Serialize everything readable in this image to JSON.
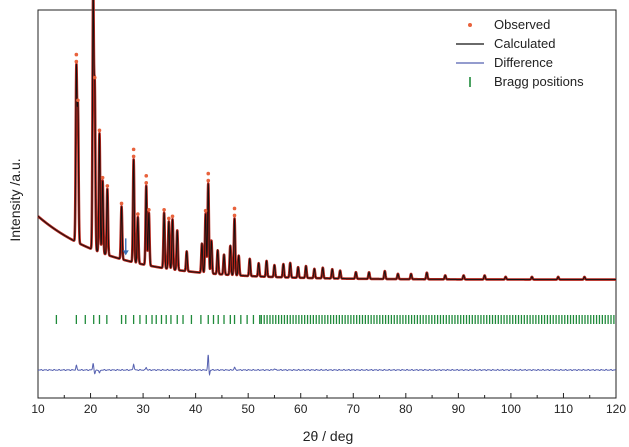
{
  "chart_data": {
    "type": "line",
    "xlabel": "2θ / deg",
    "ylabel": "Intensity /a.u.",
    "xlim": [
      10,
      120
    ],
    "xticks": [
      10,
      20,
      30,
      40,
      50,
      60,
      70,
      80,
      90,
      100,
      110,
      120
    ],
    "grid": false,
    "legend_position": "top-right",
    "background_params": {
      "level": 0.2,
      "amplitude": 0.48,
      "decay": 14
    },
    "peaks": [
      {
        "x": 17.3,
        "h": 1.3
      },
      {
        "x": 17.6,
        "h": 1.0
      },
      {
        "x": 20.5,
        "h": 1.95
      },
      {
        "x": 20.8,
        "h": 1.2
      },
      {
        "x": 21.7,
        "h": 0.9
      },
      {
        "x": 22.3,
        "h": 0.55
      },
      {
        "x": 23.2,
        "h": 0.5
      },
      {
        "x": 25.9,
        "h": 0.4
      },
      {
        "x": 28.2,
        "h": 0.78
      },
      {
        "x": 29.0,
        "h": 0.35
      },
      {
        "x": 30.6,
        "h": 0.6
      },
      {
        "x": 31.1,
        "h": 0.4
      },
      {
        "x": 34.0,
        "h": 0.42
      },
      {
        "x": 34.9,
        "h": 0.36
      },
      {
        "x": 35.6,
        "h": 0.38
      },
      {
        "x": 36.5,
        "h": 0.3
      },
      {
        "x": 38.3,
        "h": 0.15
      },
      {
        "x": 41.2,
        "h": 0.22
      },
      {
        "x": 41.9,
        "h": 0.45
      },
      {
        "x": 42.4,
        "h": 0.68
      },
      {
        "x": 43.0,
        "h": 0.25
      },
      {
        "x": 44.2,
        "h": 0.18
      },
      {
        "x": 45.4,
        "h": 0.15
      },
      {
        "x": 46.6,
        "h": 0.22
      },
      {
        "x": 47.4,
        "h": 0.43
      },
      {
        "x": 48.2,
        "h": 0.15
      },
      {
        "x": 50.3,
        "h": 0.13
      },
      {
        "x": 52.0,
        "h": 0.1
      },
      {
        "x": 53.5,
        "h": 0.12
      },
      {
        "x": 55.0,
        "h": 0.09
      },
      {
        "x": 56.7,
        "h": 0.1
      },
      {
        "x": 58.0,
        "h": 0.11
      },
      {
        "x": 59.5,
        "h": 0.08
      },
      {
        "x": 61.0,
        "h": 0.09
      },
      {
        "x": 62.6,
        "h": 0.07
      },
      {
        "x": 64.2,
        "h": 0.08
      },
      {
        "x": 66.0,
        "h": 0.07
      },
      {
        "x": 67.5,
        "h": 0.06
      },
      {
        "x": 70.5,
        "h": 0.05
      },
      {
        "x": 73.0,
        "h": 0.05
      },
      {
        "x": 76.0,
        "h": 0.06
      },
      {
        "x": 78.5,
        "h": 0.04
      },
      {
        "x": 81.0,
        "h": 0.04
      },
      {
        "x": 84.0,
        "h": 0.05
      },
      {
        "x": 87.5,
        "h": 0.03
      },
      {
        "x": 91.0,
        "h": 0.03
      },
      {
        "x": 95.0,
        "h": 0.03
      },
      {
        "x": 99.0,
        "h": 0.02
      },
      {
        "x": 104.0,
        "h": 0.02
      },
      {
        "x": 109.0,
        "h": 0.02
      },
      {
        "x": 114.0,
        "h": 0.02
      }
    ],
    "bragg_positions": [
      13.5,
      17.3,
      19.0,
      20.6,
      21.7,
      23.1,
      25.9,
      26.7,
      28.2,
      29.4,
      30.6,
      31.7,
      32.5,
      33.5,
      34.4,
      35.3,
      36.5,
      37.6,
      39.2,
      41.0,
      42.4,
      43.4,
      44.3,
      45.4,
      46.6,
      47.4,
      48.6,
      49.8,
      51.0,
      52.2
    ],
    "bragg_dense_start": 52.5,
    "bragg_dense_end": 120,
    "bragg_dense_step": 0.55,
    "difference_spikes": [
      {
        "x": 17.3,
        "d": 0.16
      },
      {
        "x": 20.5,
        "d": 0.25
      },
      {
        "x": 20.8,
        "d": -0.15
      },
      {
        "x": 21.7,
        "d": -0.12
      },
      {
        "x": 28.2,
        "d": 0.22
      },
      {
        "x": 30.6,
        "d": 0.1
      },
      {
        "x": 42.4,
        "d": 0.55
      },
      {
        "x": 42.6,
        "d": -0.2
      },
      {
        "x": 47.4,
        "d": 0.1
      },
      {
        "x": 55.0,
        "d": 0.05
      }
    ],
    "markers": [
      {
        "x": 26.7,
        "type": "arrow"
      }
    ],
    "series": [
      {
        "name": "Observed",
        "style": "dots",
        "color": "#e8623c"
      },
      {
        "name": "Calculated",
        "style": "line",
        "color": "#111111"
      },
      {
        "name": "Difference",
        "style": "line",
        "color": "#5560b0"
      },
      {
        "name": "Bragg positions",
        "style": "ticks",
        "color": "#1f8a3a"
      }
    ],
    "colors": {
      "profile_outline": "#b2241b",
      "arrow": "#3a6fb5"
    }
  }
}
